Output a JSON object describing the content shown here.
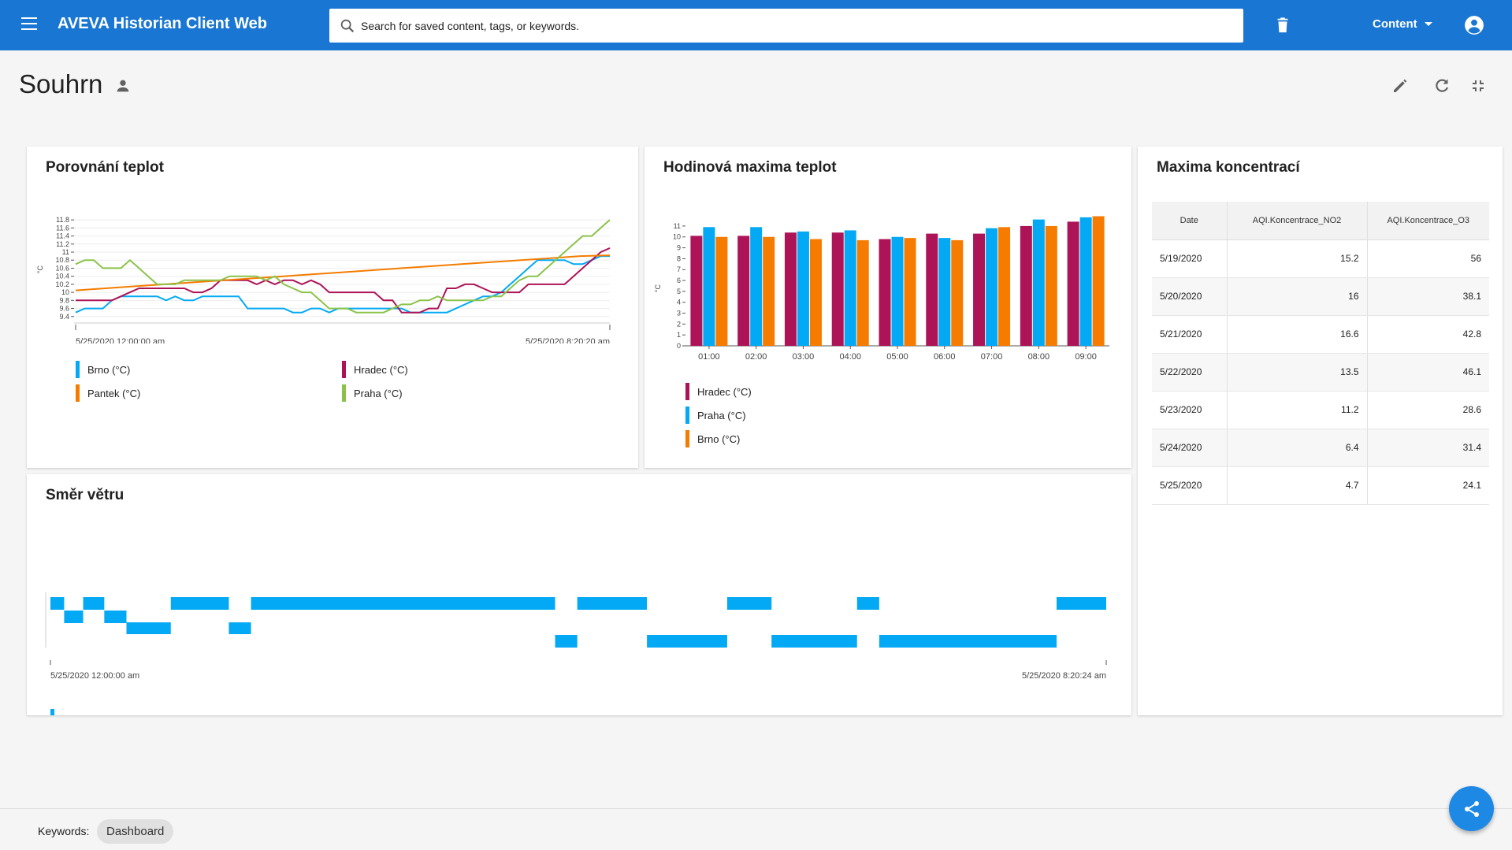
{
  "header": {
    "app_title": "AVEVA Historian Client Web",
    "search_placeholder": "Search for saved content, tags, or keywords.",
    "content_label": "Content"
  },
  "page": {
    "title": "Souhrn"
  },
  "colors": {
    "primary": "#1976d2",
    "blue": "#03a9f4",
    "crimson": "#ad1457",
    "orange": "#f57c00",
    "green": "#8bc34a"
  },
  "cards": {
    "temp_compare": {
      "title": "Porovnání teplot",
      "legend": [
        {
          "label": "Brno (°C)",
          "color": "#03a9f4"
        },
        {
          "label": "Hradec (°C)",
          "color": "#ad1457"
        },
        {
          "label": "Pantek (°C)",
          "color": "#f57c00"
        },
        {
          "label": "Praha (°C)",
          "color": "#8bc34a"
        }
      ]
    },
    "hourly_max": {
      "title": "Hodinová maxima teplot",
      "legend": [
        {
          "label": "Hradec (°C)",
          "color": "#ad1457"
        },
        {
          "label": "Praha (°C)",
          "color": "#03a9f4"
        },
        {
          "label": "Brno (°C)",
          "color": "#f57c00"
        }
      ]
    },
    "concentration": {
      "title": "Maxima koncentrací",
      "columns": [
        "Date",
        "AQI.Koncentrace_NO2",
        "AQI.Koncentrace_O3"
      ],
      "rows": [
        [
          "5/19/2020",
          "15.2",
          "56"
        ],
        [
          "5/20/2020",
          "16",
          "38.1"
        ],
        [
          "5/21/2020",
          "16.6",
          "42.8"
        ],
        [
          "5/22/2020",
          "13.5",
          "46.1"
        ],
        [
          "5/23/2020",
          "11.2",
          "28.6"
        ],
        [
          "5/24/2020",
          "6.4",
          "31.4"
        ],
        [
          "5/25/2020",
          "4.7",
          "24.1"
        ]
      ]
    },
    "wind": {
      "title": "Směr větru"
    }
  },
  "chart_data": [
    {
      "type": "line",
      "ylabel": "°C",
      "y_ticks": [
        9.4,
        9.6,
        9.8,
        10,
        10.2,
        10.4,
        10.6,
        10.8,
        11,
        11.2,
        11.4,
        11.6,
        11.8
      ],
      "ylim": [
        9.2,
        11.9
      ],
      "x_start_label": "5/25/2020 12:00:00 am",
      "x_end_label": "5/25/2020 8:20:20 am",
      "series": [
        {
          "name": "Brno (°C)",
          "color": "#03a9f4",
          "values": [
            9.5,
            9.6,
            9.6,
            9.6,
            9.8,
            9.9,
            9.9,
            9.9,
            9.9,
            9.9,
            9.8,
            9.9,
            9.8,
            9.8,
            9.9,
            9.9,
            9.9,
            9.9,
            9.9,
            9.6,
            9.6,
            9.6,
            9.6,
            9.6,
            9.5,
            9.5,
            9.6,
            9.6,
            9.5,
            9.6,
            9.6,
            9.6,
            9.6,
            9.6,
            9.6,
            9.6,
            9.6,
            9.5,
            9.5,
            9.5,
            9.5,
            9.5,
            9.6,
            9.7,
            9.8,
            9.9,
            9.9,
            10.0,
            10.2,
            10.4,
            10.6,
            10.8,
            10.8,
            10.8,
            10.8,
            10.7,
            10.7,
            10.8,
            10.9,
            10.9
          ]
        },
        {
          "name": "Hradec (°C)",
          "color": "#ad1457",
          "values": [
            9.8,
            9.8,
            9.8,
            9.8,
            9.8,
            9.9,
            10.0,
            10.1,
            10.1,
            10.1,
            10.1,
            10.1,
            10.1,
            10.0,
            10.0,
            10.1,
            10.3,
            10.3,
            10.3,
            10.3,
            10.2,
            10.3,
            10.2,
            10.3,
            10.3,
            10.2,
            10.3,
            10.2,
            10.0,
            10.0,
            10.0,
            10.0,
            10.0,
            10.0,
            9.8,
            9.8,
            9.5,
            9.5,
            9.5,
            9.6,
            9.6,
            10.1,
            10.1,
            10.2,
            10.2,
            10.1,
            10.0,
            10.0,
            10.0,
            10.0,
            10.2,
            10.2,
            10.2,
            10.2,
            10.2,
            10.4,
            10.6,
            10.8,
            11.0,
            11.1
          ]
        },
        {
          "name": "Pantek (°C)",
          "color": "#f57c00",
          "values": [
            10.05,
            10.1,
            10.15,
            10.2,
            10.25,
            10.3,
            10.35,
            10.4,
            10.45,
            10.5,
            10.55,
            10.6,
            10.65,
            10.7,
            10.75,
            10.8,
            10.85,
            10.9,
            10.92
          ]
        },
        {
          "name": "Praha (°C)",
          "color": "#8bc34a",
          "values": [
            10.7,
            10.8,
            10.8,
            10.6,
            10.6,
            10.6,
            10.8,
            10.6,
            10.4,
            10.2,
            10.2,
            10.2,
            10.3,
            10.3,
            10.3,
            10.3,
            10.3,
            10.4,
            10.4,
            10.4,
            10.4,
            10.3,
            10.4,
            10.2,
            10.1,
            10.0,
            10.0,
            9.8,
            9.6,
            9.6,
            9.6,
            9.5,
            9.5,
            9.5,
            9.5,
            9.6,
            9.7,
            9.7,
            9.8,
            9.8,
            9.9,
            9.8,
            9.8,
            9.8,
            9.8,
            9.8,
            9.9,
            9.9,
            10.1,
            10.3,
            10.4,
            10.4,
            10.6,
            10.8,
            11.0,
            11.2,
            11.4,
            11.4,
            11.6,
            11.8
          ]
        }
      ]
    },
    {
      "type": "bar",
      "ylabel": "°C",
      "categories": [
        "01:00",
        "02:00",
        "03:00",
        "04:00",
        "05:00",
        "06:00",
        "07:00",
        "08:00",
        "09:00"
      ],
      "y_ticks": [
        0,
        1,
        2,
        3,
        4,
        5,
        6,
        7,
        8,
        9,
        10,
        11
      ],
      "ylim": [
        0,
        11.5
      ],
      "series": [
        {
          "name": "Hradec (°C)",
          "color": "#ad1457",
          "values": [
            10.1,
            10.1,
            10.4,
            10.4,
            9.8,
            10.3,
            10.3,
            11.0,
            11.4
          ]
        },
        {
          "name": "Praha (°C)",
          "color": "#03a9f4",
          "values": [
            10.9,
            10.9,
            10.5,
            10.6,
            10.0,
            9.9,
            10.8,
            11.6,
            11.8
          ]
        },
        {
          "name": "Brno (°C)",
          "color": "#f57c00",
          "values": [
            10.0,
            10.0,
            9.8,
            9.7,
            9.9,
            9.7,
            10.9,
            11.0,
            11.9
          ]
        }
      ]
    },
    {
      "type": "bar",
      "x_start_label": "5/25/2020 12:00:00 am",
      "x_end_label": "5/25/2020 8:20:24 am",
      "lanes": 3,
      "segments": [
        {
          "start": 0.0,
          "end": 0.013,
          "lane": 0
        },
        {
          "start": 0.013,
          "end": 0.031,
          "lane": 1
        },
        {
          "start": 0.031,
          "end": 0.051,
          "lane": 0
        },
        {
          "start": 0.051,
          "end": 0.072,
          "lane": 1
        },
        {
          "start": 0.072,
          "end": 0.114,
          "lane": 2
        },
        {
          "start": 0.114,
          "end": 0.169,
          "lane": 0
        },
        {
          "start": 0.169,
          "end": 0.19,
          "lane": 2
        },
        {
          "start": 0.19,
          "end": 0.478,
          "lane": 0
        },
        {
          "start": 0.478,
          "end": 0.499,
          "lane": 3
        },
        {
          "start": 0.499,
          "end": 0.565,
          "lane": 0
        },
        {
          "start": 0.565,
          "end": 0.641,
          "lane": 3
        },
        {
          "start": 0.641,
          "end": 0.683,
          "lane": 0
        },
        {
          "start": 0.683,
          "end": 0.764,
          "lane": 3
        },
        {
          "start": 0.764,
          "end": 0.785,
          "lane": 0
        },
        {
          "start": 0.785,
          "end": 0.953,
          "lane": 3
        },
        {
          "start": 0.953,
          "end": 1.0,
          "lane": 0
        }
      ]
    }
  ]
}
